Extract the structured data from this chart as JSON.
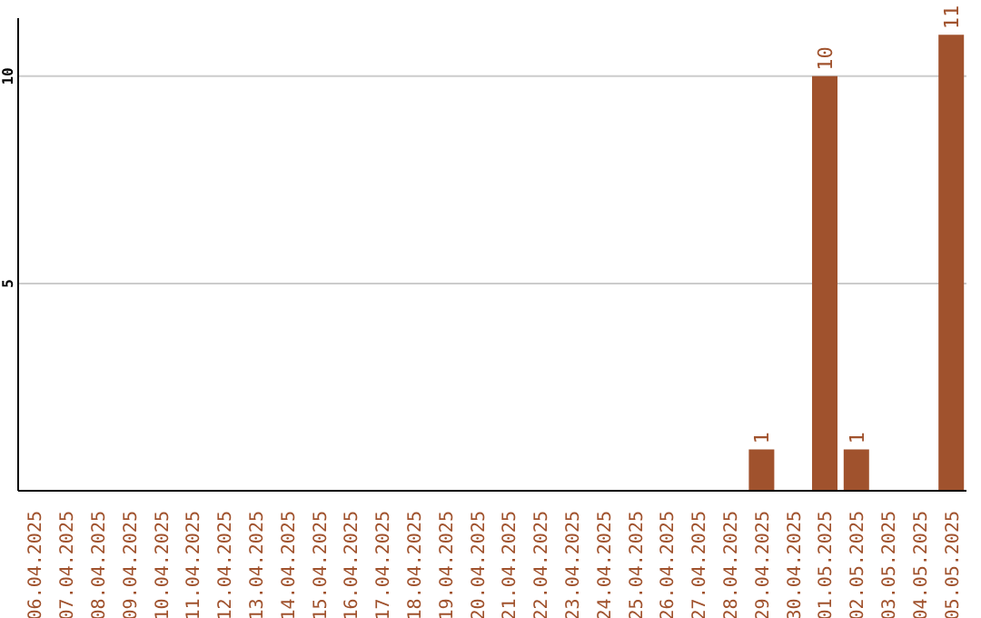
{
  "chart_data": {
    "type": "bar",
    "categories": [
      "06.04.2025",
      "07.04.2025",
      "08.04.2025",
      "09.04.2025",
      "10.04.2025",
      "11.04.2025",
      "12.04.2025",
      "13.04.2025",
      "14.04.2025",
      "15.04.2025",
      "16.04.2025",
      "17.04.2025",
      "18.04.2025",
      "19.04.2025",
      "20.04.2025",
      "21.04.2025",
      "22.04.2025",
      "23.04.2025",
      "24.04.2025",
      "25.04.2025",
      "26.04.2025",
      "27.04.2025",
      "28.04.2025",
      "29.04.2025",
      "30.04.2025",
      "01.05.2025",
      "02.05.2025",
      "03.05.2025",
      "04.05.2025",
      "05.05.2025"
    ],
    "values": [
      0,
      0,
      0,
      0,
      0,
      0,
      0,
      0,
      0,
      0,
      0,
      0,
      0,
      0,
      0,
      0,
      0,
      0,
      0,
      0,
      0,
      0,
      0,
      1,
      0,
      10,
      1,
      0,
      0,
      11
    ],
    "value_labels": [
      null,
      null,
      null,
      null,
      null,
      null,
      null,
      null,
      null,
      null,
      null,
      null,
      null,
      null,
      null,
      null,
      null,
      null,
      null,
      null,
      null,
      null,
      null,
      "1",
      null,
      "10",
      "1",
      null,
      null,
      "11"
    ],
    "color": "#a0522d",
    "ylim": [
      0,
      11.4
    ],
    "yticks": [
      5,
      10
    ],
    "grid": "y"
  }
}
